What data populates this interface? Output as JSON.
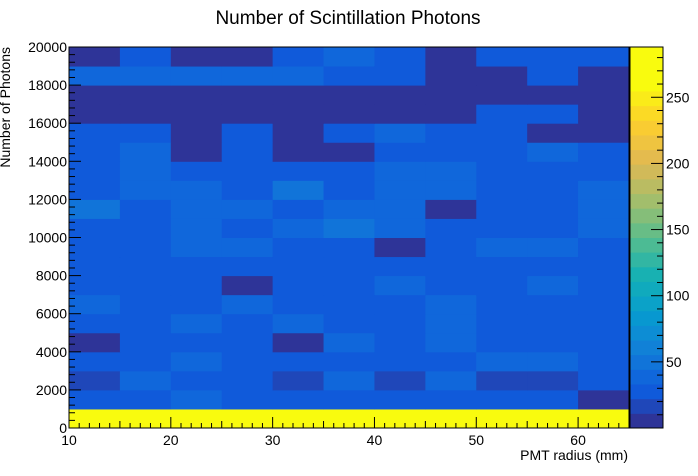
{
  "chart_data": {
    "type": "heatmap",
    "title": "Number of Scintillation Photons",
    "xlabel": "PMT radius (mm)",
    "ylabel": "Number of Photons",
    "xlim": [
      10,
      65
    ],
    "ylim": [
      0,
      20000
    ],
    "zlim": [
      0,
      288
    ],
    "x_bin_edges": [
      10,
      15,
      20,
      25,
      30,
      35,
      40,
      45,
      50,
      55,
      60,
      65
    ],
    "y_bin_width": 1000,
    "x_ticks": [
      10,
      20,
      30,
      40,
      50,
      60
    ],
    "x_tick_labels": [
      "10",
      "20",
      "30",
      "40",
      "50",
      "60"
    ],
    "y_ticks": [
      0,
      2000,
      4000,
      6000,
      8000,
      10000,
      12000,
      14000,
      16000,
      18000,
      20000
    ],
    "y_tick_labels": [
      "0",
      "2000",
      "4000",
      "6000",
      "8000",
      "10000",
      "12000",
      "14000",
      "16000",
      "18000",
      "20000"
    ],
    "z_ticks": [
      50,
      100,
      150,
      200,
      250
    ],
    "z_tick_labels": [
      "50",
      "100",
      "150",
      "200",
      "250"
    ],
    "values": [
      [
        285,
        288,
        275,
        285,
        285,
        270,
        272,
        275,
        285,
        272,
        272
      ],
      [
        25,
        25,
        40,
        25,
        25,
        25,
        25,
        25,
        25,
        25,
        10
      ],
      [
        12,
        40,
        25,
        25,
        12,
        40,
        12,
        40,
        12,
        12,
        25
      ],
      [
        25,
        25,
        40,
        25,
        25,
        25,
        25,
        25,
        40,
        40,
        25
      ],
      [
        10,
        25,
        25,
        25,
        10,
        40,
        25,
        40,
        25,
        25,
        25
      ],
      [
        25,
        25,
        40,
        25,
        40,
        25,
        25,
        40,
        25,
        25,
        25
      ],
      [
        40,
        25,
        25,
        40,
        25,
        25,
        25,
        40,
        25,
        25,
        25
      ],
      [
        25,
        25,
        25,
        10,
        25,
        25,
        40,
        25,
        25,
        40,
        25
      ],
      [
        25,
        25,
        25,
        25,
        25,
        25,
        25,
        25,
        25,
        25,
        25
      ],
      [
        25,
        25,
        40,
        40,
        25,
        25,
        10,
        25,
        40,
        40,
        25
      ],
      [
        25,
        25,
        40,
        25,
        40,
        55,
        40,
        25,
        25,
        25,
        40
      ],
      [
        55,
        25,
        40,
        40,
        25,
        40,
        40,
        10,
        25,
        25,
        40
      ],
      [
        25,
        40,
        40,
        25,
        55,
        25,
        40,
        40,
        25,
        25,
        40
      ],
      [
        25,
        40,
        25,
        25,
        25,
        25,
        40,
        40,
        25,
        25,
        25
      ],
      [
        25,
        40,
        10,
        25,
        10,
        10,
        25,
        25,
        25,
        40,
        25
      ],
      [
        25,
        25,
        10,
        25,
        10,
        25,
        40,
        25,
        25,
        10,
        10
      ],
      [
        10,
        10,
        10,
        10,
        10,
        10,
        10,
        10,
        25,
        25,
        10
      ],
      [
        10,
        10,
        10,
        10,
        10,
        10,
        10,
        10,
        10,
        10,
        10
      ],
      [
        40,
        40,
        40,
        40,
        40,
        25,
        25,
        10,
        10,
        25,
        10
      ],
      [
        10,
        25,
        10,
        10,
        25,
        40,
        25,
        10,
        25,
        25,
        25
      ]
    ],
    "grid": false,
    "colormap": "parula",
    "colorbar": "right"
  }
}
